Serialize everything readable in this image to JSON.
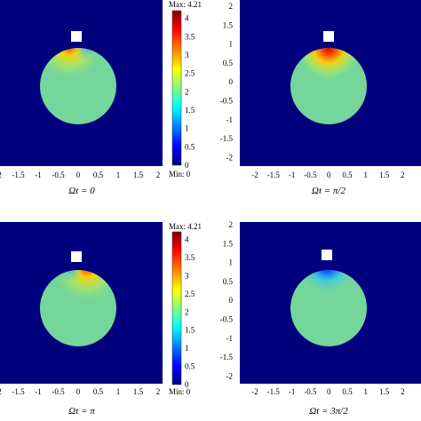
{
  "colorbar": {
    "max_label": "Max: 4.21",
    "min_label": "Min: 0",
    "ticks": [
      "4",
      "3.5",
      "3",
      "2.5",
      "2",
      "1.5",
      "1",
      "0.5",
      "0"
    ],
    "stops": [
      "#7f0000",
      "#ff0000",
      "#ffff00",
      "#00ffff",
      "#0000ff",
      "#00007f"
    ]
  },
  "axis_ticks": {
    "x": [
      "-2",
      "-1.5",
      "-1",
      "-0.5",
      "0",
      "0.5",
      "1",
      "1.5",
      "2"
    ],
    "y": [
      "2",
      "1.5",
      "1",
      "0.5",
      "0",
      "-0.5",
      "-1",
      "-1.5",
      "-2"
    ]
  },
  "panels": [
    {
      "caption": "Ωt = 0",
      "hot_spot": "red-yellow, left of top"
    },
    {
      "caption": "Ωt = π/2",
      "hot_spot": "red, centered at top"
    },
    {
      "caption": "Ωt = π",
      "hot_spot": "red-yellow, right of top"
    },
    {
      "caption": "Ωt = 3π/2",
      "hot_spot": "blue, centered at top"
    }
  ],
  "colors": {
    "background": "#00007f",
    "disk": "#74d69a",
    "marker": "#ffffff"
  }
}
